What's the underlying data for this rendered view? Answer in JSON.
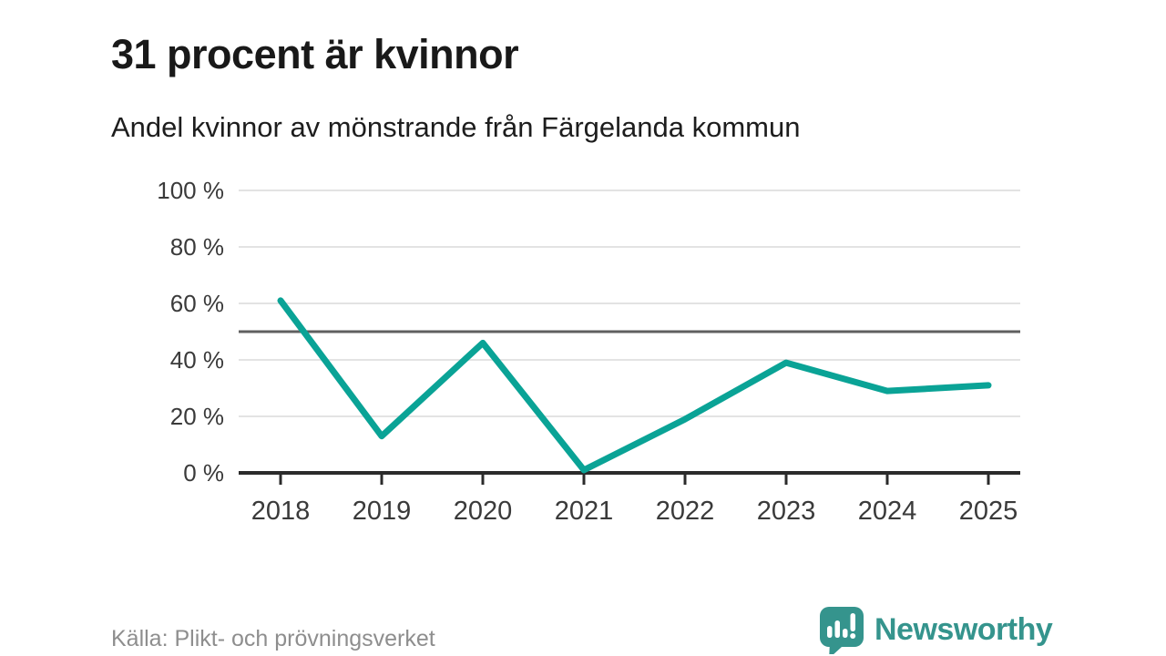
{
  "page": {
    "title": "31 procent är kvinnor",
    "subtitle": "Andel kvinnor av mönstrande från Färgelanda kommun",
    "source": "Källa: Plikt- och prövningsverket",
    "brand": "Newsworthy"
  },
  "colors": {
    "line": "#0aa396",
    "brand": "#35948d",
    "grid": "#e3e3e3",
    "reference_line": "#5f5f5f",
    "axis": "#2b2b2b",
    "tick_text": "#3a3a3a",
    "source_text": "#8e8e8e",
    "title_text": "#191919"
  },
  "chart_data": {
    "type": "line",
    "x": [
      2018,
      2019,
      2020,
      2021,
      2022,
      2023,
      2024,
      2025
    ],
    "values": [
      61,
      13,
      46,
      1,
      19,
      39,
      29,
      31
    ],
    "series_name": "Andel kvinnor av mönstrande",
    "unit": "%",
    "ylim": [
      0,
      100
    ],
    "yticks": [
      0,
      20,
      40,
      60,
      80,
      100
    ],
    "ytick_labels": [
      "0 %",
      "20 %",
      "40 %",
      "60 %",
      "80 %",
      "100 %"
    ],
    "reference_line": 50,
    "grid": "horizontal",
    "legend": "none",
    "title": "31 procent är kvinnor",
    "subtitle": "Andel kvinnor av mönstrande från Färgelanda kommun"
  }
}
